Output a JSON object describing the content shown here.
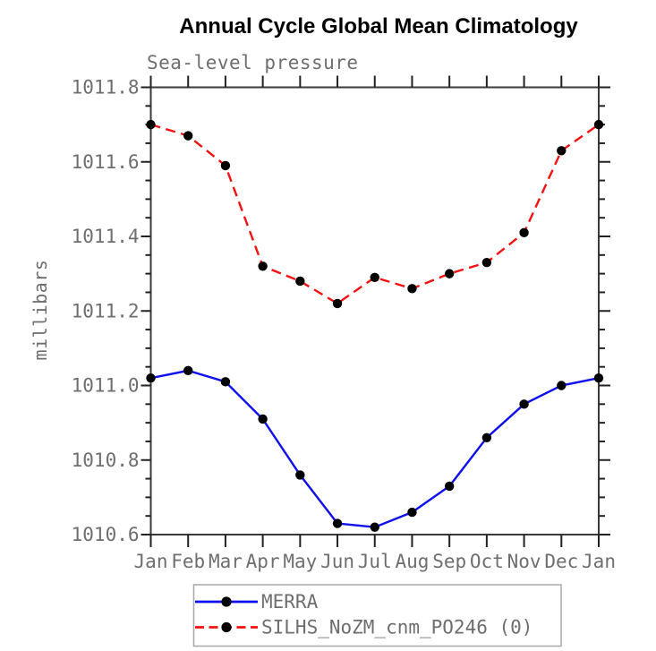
{
  "title": "Annual Cycle Global Mean Climatology",
  "subtitle": "Sea-level pressure",
  "y_axis_label": "millibars",
  "colors": {
    "merra_line": "#0f0ff0",
    "silhs_line": "#f51111",
    "marker": "#000000",
    "frame": "#3a3a3a",
    "tick": "#222222",
    "text": "#6e6e6e",
    "title_text": "#000000",
    "legend_border": "#a8a8a8",
    "background": "#ffffff"
  },
  "legend": {
    "entries": [
      "MERRA",
      "SILHS_NoZM_cnm_PO246 (0)"
    ]
  },
  "chart_data": {
    "type": "line",
    "title": "Annual Cycle Global Mean Climatology",
    "subtitle": "Sea-level pressure",
    "xlabel": "",
    "ylabel": "millibars",
    "categories": [
      "Jan",
      "Feb",
      "Mar",
      "Apr",
      "May",
      "Jun",
      "Jul",
      "Aug",
      "Sep",
      "Oct",
      "Nov",
      "Dec",
      "Jan"
    ],
    "ylim": [
      1010.6,
      1011.8
    ],
    "y_major_step": 0.2,
    "y_minor_step": 0.05,
    "y_ticks": {
      "values": [
        1010.6,
        1010.8,
        1011.0,
        1011.2,
        1011.4,
        1011.6,
        1011.8
      ],
      "labels": [
        "1010.6",
        "1010.8",
        "1011.0",
        "1011.2",
        "1011.4",
        "1011.6",
        "1011.8"
      ]
    },
    "grid": false,
    "legend_position": "bottom",
    "series": [
      {
        "name": "MERRA",
        "style": "solid",
        "color": "#0f0ff0",
        "marker": "filled-circle",
        "values": [
          1011.02,
          1011.04,
          1011.01,
          1010.91,
          1010.76,
          1010.63,
          1010.62,
          1010.66,
          1010.73,
          1010.86,
          1010.95,
          1011.0,
          1011.02
        ]
      },
      {
        "name": "SILHS_NoZM_cnm_PO246 (0)",
        "style": "dashed",
        "color": "#f51111",
        "marker": "filled-circle",
        "values": [
          1011.7,
          1011.67,
          1011.59,
          1011.32,
          1011.28,
          1011.22,
          1011.29,
          1011.26,
          1011.3,
          1011.33,
          1011.41,
          1011.63,
          1011.7
        ]
      }
    ]
  }
}
